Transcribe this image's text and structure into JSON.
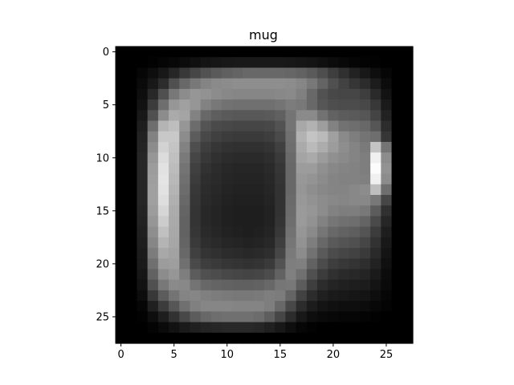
{
  "chart_data": {
    "type": "heatmap",
    "title": "mug",
    "xlabel": "",
    "ylabel": "",
    "colormap": "gray",
    "value_range": [
      0,
      255
    ],
    "xlim": [
      -0.5,
      27.5
    ],
    "ylim": [
      27.5,
      -0.5
    ],
    "x_ticks": [
      0,
      5,
      10,
      15,
      20,
      25
    ],
    "y_ticks": [
      0,
      5,
      10,
      15,
      20,
      25
    ],
    "x_tick_labels": [
      "0",
      "5",
      "10",
      "15",
      "20",
      "25"
    ],
    "y_tick_labels": [
      "0",
      "5",
      "10",
      "15",
      "20",
      "25"
    ],
    "grid": false,
    "rows": 28,
    "cols": 28,
    "values": [
      [
        0,
        0,
        0,
        0,
        0,
        0,
        0,
        0,
        0,
        0,
        0,
        0,
        0,
        0,
        0,
        0,
        0,
        0,
        0,
        0,
        0,
        0,
        0,
        0,
        0,
        0,
        0,
        0
      ],
      [
        0,
        0,
        0,
        2,
        5,
        8,
        12,
        16,
        20,
        22,
        24,
        25,
        25,
        25,
        25,
        25,
        24,
        22,
        20,
        16,
        12,
        8,
        5,
        3,
        2,
        0,
        0,
        0
      ],
      [
        0,
        0,
        6,
        14,
        24,
        38,
        56,
        70,
        82,
        90,
        96,
        100,
        104,
        104,
        104,
        104,
        102,
        98,
        90,
        78,
        62,
        48,
        34,
        24,
        14,
        6,
        0,
        0
      ],
      [
        0,
        0,
        10,
        24,
        44,
        80,
        104,
        120,
        132,
        138,
        140,
        142,
        142,
        142,
        142,
        142,
        140,
        134,
        120,
        100,
        80,
        66,
        54,
        44,
        28,
        12,
        0,
        0
      ],
      [
        0,
        0,
        14,
        40,
        80,
        120,
        140,
        150,
        146,
        140,
        136,
        134,
        134,
        134,
        134,
        136,
        138,
        128,
        104,
        82,
        72,
        70,
        70,
        62,
        42,
        18,
        0,
        0
      ],
      [
        0,
        0,
        18,
        60,
        110,
        150,
        160,
        150,
        130,
        120,
        114,
        112,
        112,
        112,
        112,
        116,
        124,
        120,
        104,
        86,
        78,
        76,
        76,
        72,
        56,
        26,
        0,
        0
      ],
      [
        0,
        0,
        24,
        80,
        140,
        170,
        164,
        130,
        104,
        94,
        90,
        88,
        88,
        88,
        90,
        96,
        116,
        138,
        138,
        114,
        98,
        92,
        90,
        86,
        68,
        34,
        0,
        0
      ],
      [
        0,
        0,
        30,
        110,
        180,
        190,
        150,
        108,
        84,
        74,
        72,
        70,
        70,
        70,
        72,
        82,
        116,
        168,
        178,
        158,
        130,
        114,
        110,
        104,
        86,
        44,
        0,
        0
      ],
      [
        0,
        0,
        34,
        130,
        200,
        200,
        140,
        92,
        72,
        64,
        60,
        58,
        58,
        58,
        62,
        74,
        112,
        178,
        196,
        186,
        160,
        138,
        126,
        116,
        110,
        54,
        0,
        0
      ],
      [
        0,
        0,
        36,
        140,
        210,
        196,
        130,
        78,
        62,
        54,
        50,
        48,
        48,
        48,
        52,
        64,
        110,
        170,
        186,
        172,
        156,
        142,
        132,
        122,
        196,
        116,
        0,
        0
      ],
      [
        0,
        0,
        38,
        150,
        220,
        192,
        122,
        70,
        56,
        48,
        44,
        42,
        42,
        42,
        46,
        58,
        106,
        164,
        170,
        156,
        144,
        138,
        132,
        126,
        240,
        140,
        0,
        0
      ],
      [
        0,
        0,
        38,
        156,
        226,
        188,
        116,
        64,
        50,
        44,
        40,
        38,
        38,
        38,
        42,
        54,
        104,
        156,
        156,
        144,
        136,
        132,
        130,
        126,
        252,
        146,
        0,
        0
      ],
      [
        0,
        0,
        38,
        158,
        228,
        184,
        112,
        60,
        46,
        42,
        38,
        36,
        36,
        36,
        40,
        52,
        104,
        152,
        148,
        140,
        132,
        130,
        130,
        128,
        240,
        140,
        0,
        0
      ],
      [
        0,
        0,
        38,
        160,
        226,
        180,
        108,
        56,
        44,
        40,
        36,
        34,
        34,
        34,
        38,
        50,
        104,
        150,
        142,
        136,
        132,
        132,
        136,
        140,
        190,
        110,
        0,
        0
      ],
      [
        0,
        0,
        38,
        160,
        222,
        176,
        104,
        54,
        42,
        38,
        34,
        32,
        32,
        32,
        36,
        50,
        106,
        152,
        146,
        140,
        136,
        134,
        136,
        136,
        120,
        70,
        0,
        0
      ],
      [
        0,
        0,
        36,
        156,
        214,
        172,
        100,
        52,
        40,
        36,
        32,
        30,
        30,
        30,
        34,
        50,
        108,
        154,
        150,
        140,
        130,
        126,
        126,
        120,
        92,
        48,
        0,
        0
      ],
      [
        0,
        0,
        34,
        150,
        204,
        170,
        98,
        52,
        40,
        36,
        32,
        30,
        30,
        30,
        34,
        52,
        110,
        154,
        146,
        130,
        118,
        112,
        110,
        100,
        74,
        38,
        0,
        0
      ],
      [
        0,
        0,
        32,
        142,
        192,
        168,
        98,
        54,
        42,
        38,
        34,
        32,
        30,
        32,
        36,
        56,
        114,
        150,
        138,
        118,
        104,
        98,
        94,
        84,
        60,
        30,
        0,
        0
      ],
      [
        0,
        0,
        30,
        134,
        180,
        166,
        100,
        58,
        46,
        42,
        38,
        36,
        34,
        36,
        40,
        62,
        118,
        146,
        126,
        104,
        90,
        84,
        80,
        70,
        50,
        24,
        0,
        0
      ],
      [
        0,
        0,
        28,
        124,
        168,
        162,
        104,
        64,
        52,
        48,
        44,
        42,
        40,
        42,
        46,
        70,
        122,
        140,
        114,
        90,
        76,
        70,
        66,
        58,
        42,
        20,
        0,
        0
      ],
      [
        0,
        0,
        26,
        112,
        156,
        158,
        112,
        74,
        62,
        58,
        54,
        52,
        50,
        52,
        58,
        82,
        126,
        128,
        98,
        76,
        62,
        56,
        52,
        46,
        34,
        16,
        0,
        0
      ],
      [
        0,
        0,
        22,
        98,
        140,
        150,
        126,
        92,
        80,
        76,
        72,
        70,
        68,
        70,
        76,
        98,
        128,
        112,
        80,
        60,
        48,
        42,
        40,
        36,
        26,
        12,
        0,
        0
      ],
      [
        0,
        0,
        18,
        80,
        120,
        138,
        136,
        116,
        104,
        100,
        98,
        96,
        96,
        98,
        104,
        118,
        120,
        92,
        62,
        44,
        36,
        32,
        30,
        28,
        20,
        10,
        0,
        0
      ],
      [
        0,
        0,
        12,
        56,
        92,
        116,
        132,
        134,
        128,
        124,
        122,
        120,
        120,
        122,
        126,
        124,
        100,
        66,
        44,
        32,
        26,
        24,
        22,
        20,
        14,
        6,
        0,
        0
      ],
      [
        0,
        0,
        6,
        32,
        60,
        86,
        112,
        128,
        134,
        134,
        134,
        132,
        132,
        132,
        126,
        104,
        72,
        44,
        28,
        20,
        16,
        14,
        14,
        12,
        8,
        4,
        0,
        0
      ],
      [
        0,
        0,
        2,
        14,
        30,
        50,
        72,
        92,
        104,
        110,
        112,
        112,
        112,
        108,
        94,
        70,
        44,
        24,
        14,
        10,
        8,
        6,
        6,
        4,
        2,
        0,
        0,
        0
      ],
      [
        0,
        0,
        0,
        4,
        10,
        18,
        26,
        32,
        36,
        38,
        40,
        40,
        40,
        38,
        32,
        24,
        14,
        6,
        2,
        0,
        0,
        0,
        0,
        0,
        0,
        0,
        0,
        0
      ],
      [
        0,
        0,
        0,
        0,
        0,
        0,
        0,
        0,
        0,
        0,
        0,
        0,
        0,
        0,
        0,
        0,
        0,
        0,
        0,
        0,
        0,
        0,
        0,
        0,
        0,
        0,
        0,
        0
      ]
    ]
  }
}
